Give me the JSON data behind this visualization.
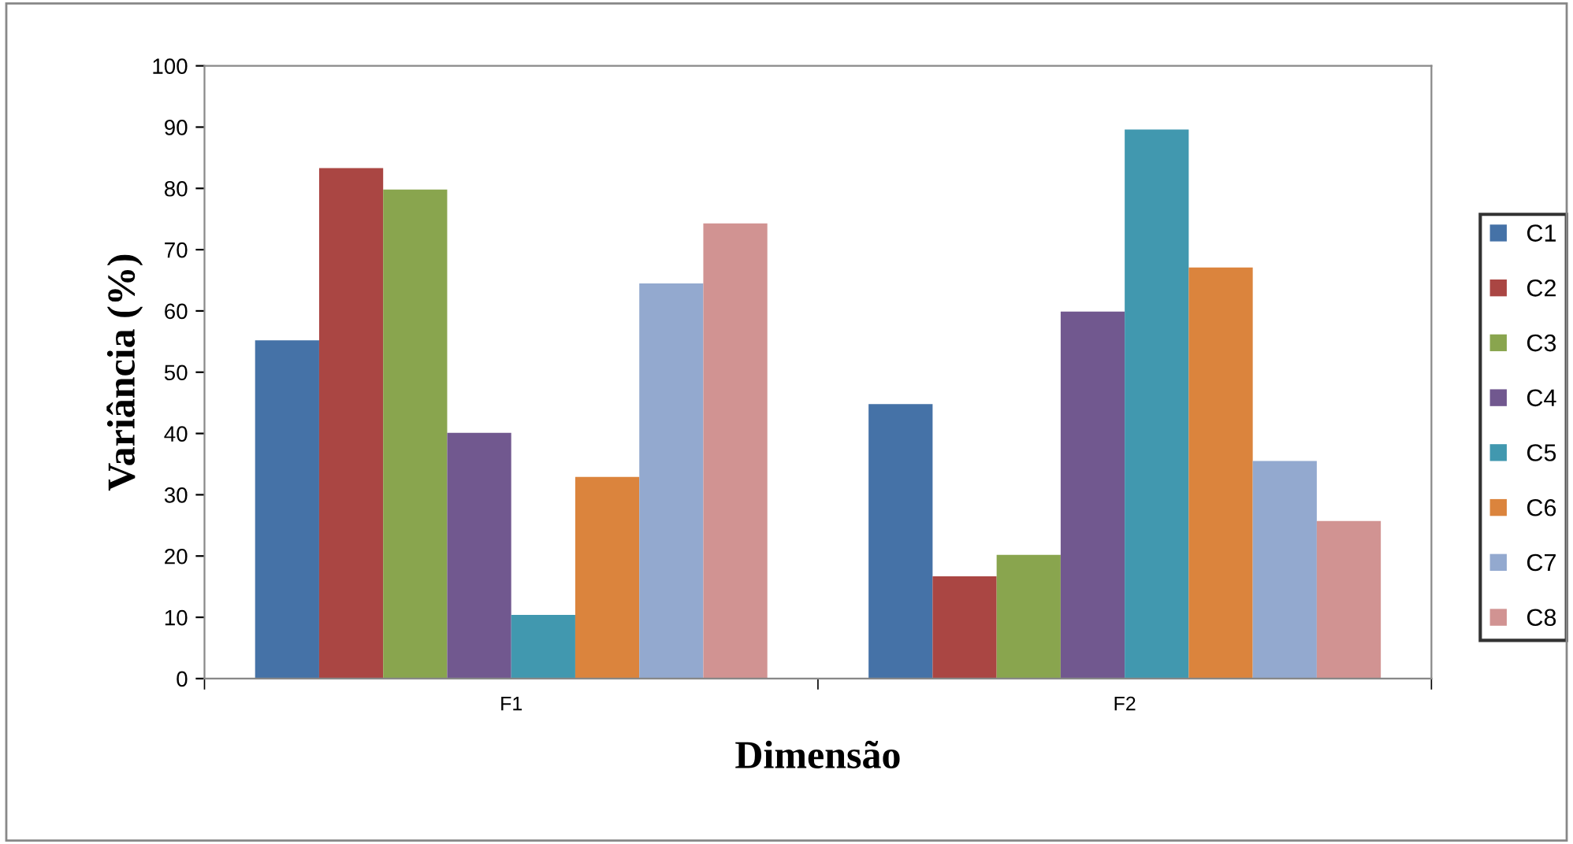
{
  "chart_data": {
    "type": "bar",
    "xlabel": "Dimensão",
    "ylabel": "Variância (%)",
    "categories": [
      "F1",
      "F2"
    ],
    "series": [
      {
        "name": "C1",
        "color": "#4572a7",
        "values": [
          55.2,
          44.8
        ]
      },
      {
        "name": "C2",
        "color": "#aa4643",
        "values": [
          83.3,
          16.7
        ]
      },
      {
        "name": "C3",
        "color": "#89a54e",
        "values": [
          79.8,
          20.2
        ]
      },
      {
        "name": "C4",
        "color": "#71588f",
        "values": [
          40.1,
          59.9
        ]
      },
      {
        "name": "C5",
        "color": "#4198af",
        "values": [
          10.4,
          89.6
        ]
      },
      {
        "name": "C6",
        "color": "#db843d",
        "values": [
          32.9,
          67.1
        ]
      },
      {
        "name": "C7",
        "color": "#93a9cf",
        "values": [
          64.5,
          35.5
        ]
      },
      {
        "name": "C8",
        "color": "#d19392",
        "values": [
          74.3,
          25.7
        ]
      }
    ],
    "ylim": [
      0,
      100
    ],
    "yticks": [
      0,
      10,
      20,
      30,
      40,
      50,
      60,
      70,
      80,
      90,
      100
    ],
    "grid": false,
    "legend": "right"
  }
}
